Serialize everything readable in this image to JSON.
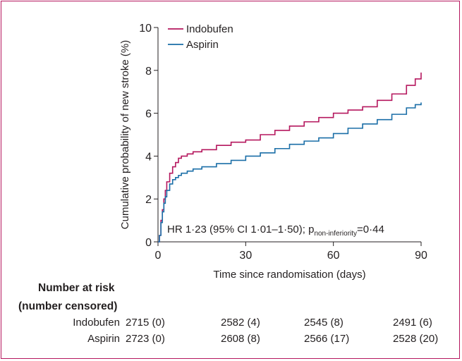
{
  "chart_data": {
    "type": "line",
    "ylabel": "Cumulative probability of new stroke (%)",
    "xlabel": "Time since randomisation (days)",
    "xlim": [
      0,
      90
    ],
    "ylim": [
      0,
      10
    ],
    "xticks": [
      "0",
      "30",
      "60",
      "90"
    ],
    "yticks": [
      "0",
      "2",
      "4",
      "6",
      "8",
      "10"
    ],
    "xtick_values": [
      0,
      30,
      60,
      90
    ],
    "ytick_values": [
      0,
      2,
      4,
      6,
      8,
      10
    ],
    "grid": false,
    "legend_position": "top-left",
    "annotation": {
      "prefix": "HR 1·23 (95% CI 1·01–1·50); p",
      "subscript": "non-inferiority",
      "suffix": "=0·44"
    },
    "series": [
      {
        "name": "Indobufen",
        "color": "#b5175e",
        "x": [
          0,
          0.5,
          1,
          1.5,
          2,
          2.5,
          3,
          4,
          5,
          6,
          7,
          8,
          10,
          12,
          15,
          20,
          25,
          30,
          35,
          40,
          45,
          50,
          55,
          60,
          65,
          70,
          75,
          80,
          85,
          88,
          90
        ],
        "y": [
          0,
          0.3,
          1.0,
          1.5,
          2.0,
          2.4,
          2.8,
          3.2,
          3.5,
          3.7,
          3.9,
          4.0,
          4.1,
          4.2,
          4.3,
          4.5,
          4.65,
          4.75,
          5.0,
          5.2,
          5.4,
          5.6,
          5.8,
          6.0,
          6.15,
          6.3,
          6.6,
          6.9,
          7.3,
          7.6,
          7.9
        ]
      },
      {
        "name": "Aspirin",
        "color": "#1a6ea7",
        "x": [
          0,
          0.5,
          1,
          1.5,
          2,
          2.5,
          3,
          4,
          5,
          6,
          7,
          8,
          10,
          12,
          15,
          20,
          25,
          30,
          35,
          40,
          45,
          50,
          55,
          60,
          65,
          70,
          75,
          80,
          85,
          88,
          90
        ],
        "y": [
          0,
          0.3,
          0.9,
          1.4,
          1.8,
          2.1,
          2.4,
          2.7,
          2.9,
          3.0,
          3.1,
          3.2,
          3.3,
          3.4,
          3.5,
          3.65,
          3.8,
          4.0,
          4.15,
          4.35,
          4.55,
          4.7,
          4.85,
          5.05,
          5.3,
          5.5,
          5.7,
          5.95,
          6.25,
          6.4,
          6.5
        ]
      }
    ]
  },
  "risk_table": {
    "title_line1": "Number at risk",
    "title_line2": "(number censored)",
    "rows": [
      {
        "label": "Indobufen",
        "cells": [
          "2715 (0)",
          "2582 (4)",
          "2545 (8)",
          "2491 (6)"
        ]
      },
      {
        "label": "Aspirin",
        "cells": [
          "2723 (0)",
          "2608 (8)",
          "2566 (17)",
          "2528 (20)"
        ]
      }
    ]
  }
}
